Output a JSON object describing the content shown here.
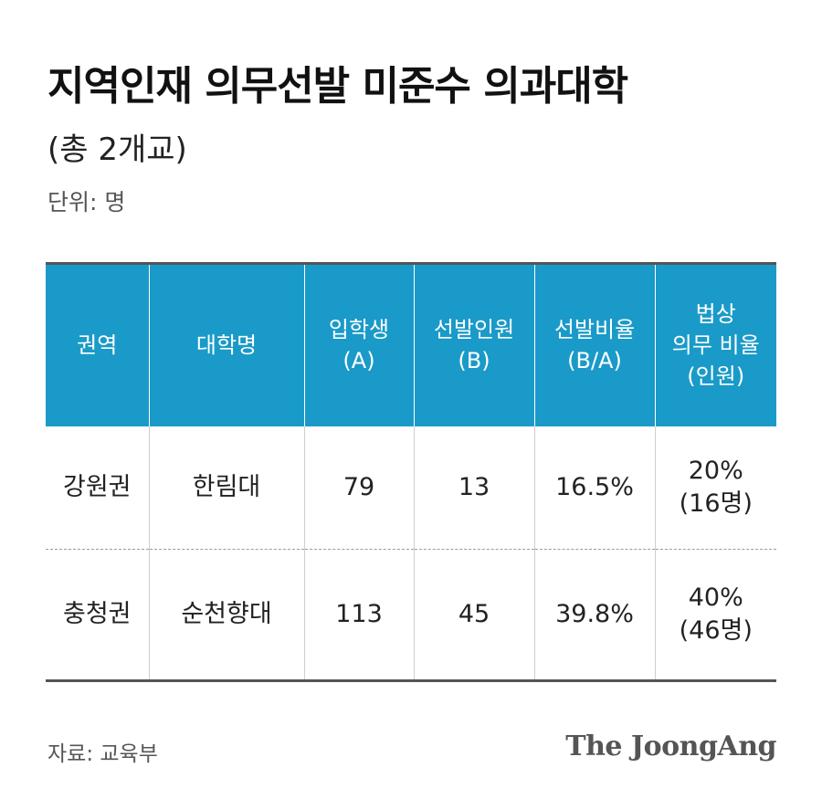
{
  "title": "지역인재 의무선발 미준수 의과대학",
  "subtitle": "(총 2개교)",
  "unit": "단위: 명",
  "table": {
    "headers": [
      [
        "권역"
      ],
      [
        "대학명"
      ],
      [
        "입학생",
        "(A)"
      ],
      [
        "선발인원",
        "(B)"
      ],
      [
        "선발비율",
        "(B/A)"
      ],
      [
        "법상",
        "의무 비율",
        "(인원)"
      ]
    ],
    "rows": [
      {
        "region": "강원권",
        "university": "한림대",
        "admitted": "79",
        "selected": "13",
        "ratio": "16.5%",
        "legal_rate": "20%",
        "legal_count": "(16명)"
      },
      {
        "region": "충청권",
        "university": "순천향대",
        "admitted": "113",
        "selected": "45",
        "ratio": "39.8%",
        "legal_rate": "40%",
        "legal_count": "(46명)"
      }
    ]
  },
  "source": "자료: 교육부",
  "logo": "The JoongAng"
}
